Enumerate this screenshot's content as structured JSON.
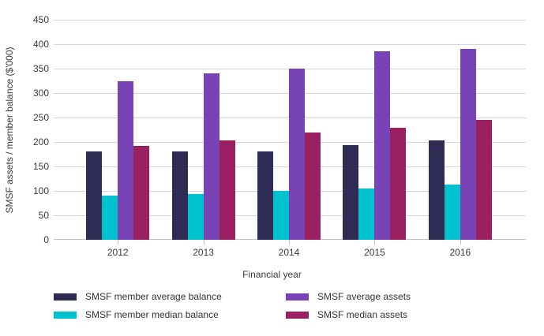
{
  "chart_data": {
    "type": "bar",
    "title": "",
    "xlabel": "Financial year",
    "ylabel": "SMSF assets / member balance ($'000)",
    "categories": [
      "2012",
      "2013",
      "2014",
      "2015",
      "2016"
    ],
    "series": [
      {
        "name": "SMSF member average balance",
        "color": "#2e2c55",
        "values": [
          181,
          181,
          180,
          194,
          204
        ]
      },
      {
        "name": "SMSF member median balance",
        "color": "#00c1ce",
        "values": [
          91,
          94,
          100,
          105,
          113
        ]
      },
      {
        "name": "SMSF average assets",
        "color": "#7843b5",
        "values": [
          325,
          340,
          350,
          385,
          390
        ]
      },
      {
        "name": "SMSF median assets",
        "color": "#9b2062",
        "values": [
          192,
          204,
          219,
          229,
          245
        ]
      }
    ],
    "ylim": [
      0,
      450
    ],
    "ytick_step": 50,
    "yticks": [
      0,
      50,
      100,
      150,
      200,
      250,
      300,
      350,
      400,
      450
    ],
    "grid": true,
    "gridline_color": "#d6d6d6",
    "axis_line_color": "#c3c3c3",
    "text_color": "#3a3a3a",
    "legend_position": "bottom-two-columns",
    "legend_order": [
      0,
      2,
      1,
      3
    ]
  }
}
